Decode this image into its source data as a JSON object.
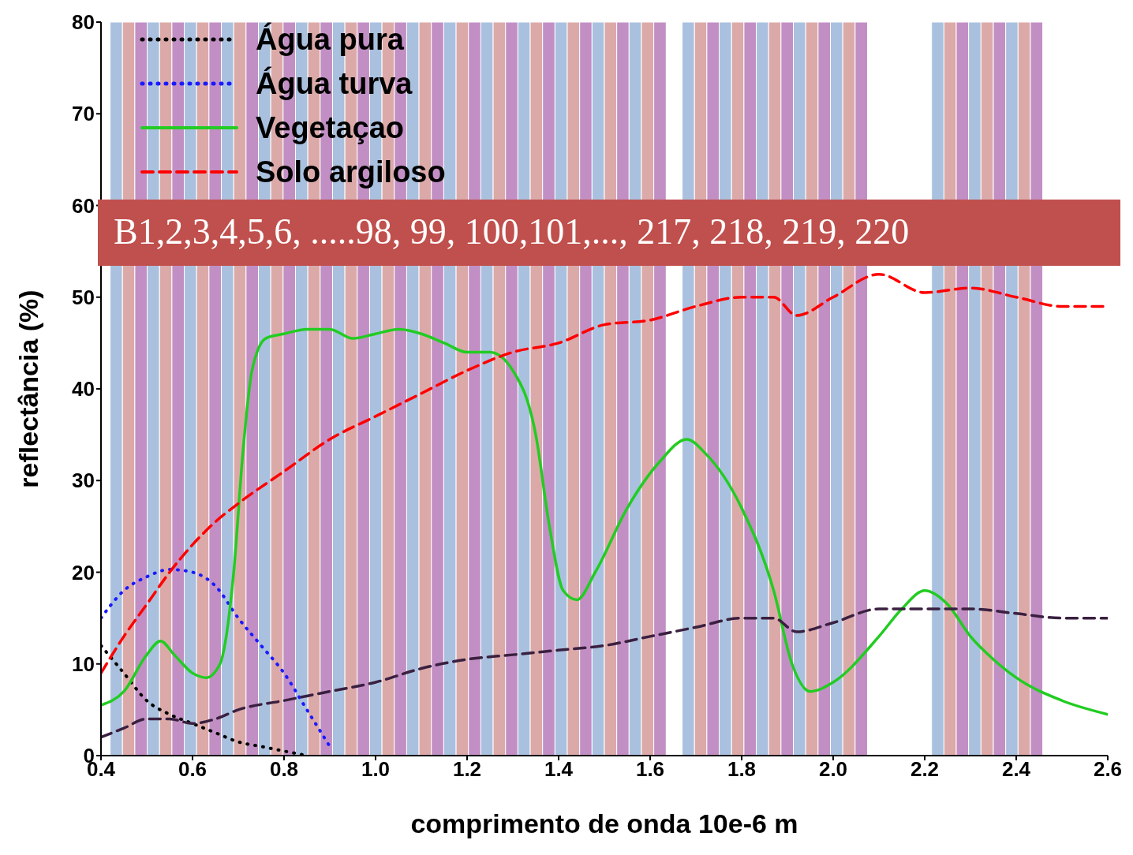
{
  "chart_data": {
    "type": "line",
    "xlabel": "comprimento de onda 10e-6 m",
    "ylabel": "reflectância (%)",
    "annotations": [
      "B1,2,3,4,5,6, .....98, 99, 100,101,..., 217, 218, 219, 220"
    ],
    "xlim": [
      0.4,
      2.6
    ],
    "xticks": [
      0.4,
      0.6,
      0.8,
      {
        "value": 1,
        "label": "1.0"
      },
      1.2,
      1.4,
      1.6,
      1.8,
      {
        "value": 2,
        "label": "2.0"
      },
      2.2,
      2.4,
      2.6
    ],
    "ylim": [
      0,
      80
    ],
    "yticks": [
      0,
      10,
      20,
      30,
      40,
      50,
      60,
      70,
      80
    ],
    "grid": false,
    "legend": "top left",
    "marker": "none",
    "series": [
      {
        "name": "Água pura",
        "color": "#000000",
        "line_style": "dotted",
        "x": [
          0.4,
          0.45,
          0.5,
          0.55,
          0.6,
          0.65,
          0.7,
          0.75,
          0.8,
          0.85
        ],
        "values": [
          12,
          9,
          6,
          4.5,
          3.5,
          2.5,
          1.5,
          1,
          0.5,
          0
        ]
      },
      {
        "name": "Água turva",
        "color": "#1a1aff",
        "line_style": "dotted",
        "x": [
          0.4,
          0.45,
          0.5,
          0.55,
          0.6,
          0.65,
          0.7,
          0.75,
          0.8,
          0.85,
          0.9
        ],
        "values": [
          15,
          18,
          19.5,
          20.3,
          20,
          18.5,
          15,
          12,
          9,
          5,
          1
        ]
      },
      {
        "name": "Vegetaçao",
        "color": "#22cc22",
        "line_style": "solid",
        "x": [
          0.4,
          0.45,
          0.5,
          0.53,
          0.56,
          0.6,
          0.63,
          0.66,
          0.69,
          0.71,
          0.73,
          0.76,
          0.8,
          0.85,
          0.9,
          0.95,
          1.0,
          1.05,
          1.1,
          1.15,
          1.2,
          1.25,
          1.3,
          1.35,
          1.38,
          1.41,
          1.44,
          1.48,
          1.55,
          1.62,
          1.68,
          1.72,
          1.8,
          1.87,
          1.91,
          1.95,
          2.0,
          2.1,
          2.15,
          2.2,
          2.25,
          2.3,
          2.35,
          2.4,
          2.5,
          2.6
        ],
        "values": [
          5.5,
          7,
          11,
          12.5,
          11,
          9,
          8.5,
          10,
          20,
          33,
          42,
          45.5,
          46,
          46.5,
          46.5,
          45.5,
          46,
          46.5,
          46,
          45,
          44,
          44,
          42,
          35,
          25,
          18,
          17,
          20,
          27,
          32,
          34.5,
          33,
          27,
          18,
          10,
          7,
          8,
          13,
          16,
          18,
          16.5,
          13,
          10.5,
          8.5,
          6,
          4.5
        ]
      },
      {
        "name": "Solo argiloso",
        "color": "#ff0000",
        "line_style": "dashed",
        "x": [
          0.4,
          0.45,
          0.5,
          0.55,
          0.6,
          0.65,
          0.7,
          0.8,
          0.9,
          1.0,
          1.1,
          1.2,
          1.3,
          1.4,
          1.5,
          1.6,
          1.7,
          1.8,
          1.87,
          1.92,
          2.0,
          2.1,
          2.2,
          2.3,
          2.4,
          2.5,
          2.6
        ],
        "values": [
          9,
          13,
          16.5,
          20,
          23,
          25.5,
          27.5,
          31,
          34.5,
          37,
          39.5,
          42,
          44,
          45,
          47,
          47.5,
          49,
          50,
          50,
          48,
          50,
          52.5,
          50.5,
          51,
          50,
          49,
          49
        ]
      },
      {
        "color": "#3a2040",
        "line_style": "dashed",
        "x": [
          0.4,
          0.45,
          0.5,
          0.55,
          0.6,
          0.65,
          0.7,
          0.8,
          0.9,
          1.0,
          1.1,
          1.2,
          1.3,
          1.4,
          1.5,
          1.6,
          1.7,
          1.8,
          1.87,
          1.92,
          2.0,
          2.1,
          2.2,
          2.3,
          2.4,
          2.5,
          2.6
        ],
        "values": [
          2,
          3,
          4,
          4,
          3.5,
          4,
          5,
          6,
          7,
          8,
          9.5,
          10.5,
          11,
          11.5,
          12,
          13,
          14,
          15,
          15,
          13.5,
          14.5,
          16,
          16,
          16,
          15.5,
          15,
          15
        ]
      }
    ],
    "bands": [
      {
        "axis": "x",
        "from": 0.42,
        "to": 0.447,
        "color": "#a9c1de"
      },
      {
        "axis": "x",
        "from": 0.447,
        "to": 0.474,
        "color": "#dca9a9"
      },
      {
        "axis": "x",
        "from": 0.474,
        "to": 0.501,
        "color": "#c28fc4"
      },
      {
        "axis": "x",
        "from": 0.501,
        "to": 0.528,
        "color": "#a9c1de"
      },
      {
        "axis": "x",
        "from": 0.528,
        "to": 0.555,
        "color": "#dca9a9"
      },
      {
        "axis": "x",
        "from": 0.555,
        "to": 0.582,
        "color": "#c28fc4"
      },
      {
        "axis": "x",
        "from": 0.582,
        "to": 0.609,
        "color": "#a9c1de"
      },
      {
        "axis": "x",
        "from": 0.609,
        "to": 0.636,
        "color": "#dca9a9"
      },
      {
        "axis": "x",
        "from": 0.636,
        "to": 0.663,
        "color": "#c28fc4"
      },
      {
        "axis": "x",
        "from": 0.663,
        "to": 0.69,
        "color": "#a9c1de"
      },
      {
        "axis": "x",
        "from": 0.69,
        "to": 0.717,
        "color": "#dca9a9"
      },
      {
        "axis": "x",
        "from": 0.717,
        "to": 0.744,
        "color": "#c28fc4"
      },
      {
        "axis": "x",
        "from": 0.744,
        "to": 0.771,
        "color": "#a9c1de"
      },
      {
        "axis": "x",
        "from": 0.771,
        "to": 0.798,
        "color": "#dca9a9"
      },
      {
        "axis": "x",
        "from": 0.798,
        "to": 0.825,
        "color": "#c28fc4"
      },
      {
        "axis": "x",
        "from": 0.825,
        "to": 0.852,
        "color": "#a9c1de"
      },
      {
        "axis": "x",
        "from": 0.852,
        "to": 0.879,
        "color": "#dca9a9"
      },
      {
        "axis": "x",
        "from": 0.879,
        "to": 0.906,
        "color": "#c28fc4"
      },
      {
        "axis": "x",
        "from": 0.906,
        "to": 0.933,
        "color": "#a9c1de"
      },
      {
        "axis": "x",
        "from": 0.933,
        "to": 0.96,
        "color": "#dca9a9"
      },
      {
        "axis": "x",
        "from": 0.96,
        "to": 0.987,
        "color": "#c28fc4"
      },
      {
        "axis": "x",
        "from": 0.987,
        "to": 1.014,
        "color": "#a9c1de"
      },
      {
        "axis": "x",
        "from": 1.014,
        "to": 1.041,
        "color": "#dca9a9"
      },
      {
        "axis": "x",
        "from": 1.041,
        "to": 1.068,
        "color": "#c28fc4"
      },
      {
        "axis": "x",
        "from": 1.068,
        "to": 1.095,
        "color": "#a9c1de"
      },
      {
        "axis": "x",
        "from": 1.095,
        "to": 1.122,
        "color": "#dca9a9"
      },
      {
        "axis": "x",
        "from": 1.122,
        "to": 1.149,
        "color": "#c28fc4"
      },
      {
        "axis": "x",
        "from": 1.149,
        "to": 1.176,
        "color": "#a9c1de"
      },
      {
        "axis": "x",
        "from": 1.176,
        "to": 1.203,
        "color": "#dca9a9"
      },
      {
        "axis": "x",
        "from": 1.203,
        "to": 1.23,
        "color": "#c28fc4"
      },
      {
        "axis": "x",
        "from": 1.23,
        "to": 1.257,
        "color": "#a9c1de"
      },
      {
        "axis": "x",
        "from": 1.257,
        "to": 1.284,
        "color": "#dca9a9"
      },
      {
        "axis": "x",
        "from": 1.284,
        "to": 1.311,
        "color": "#c28fc4"
      },
      {
        "axis": "x",
        "from": 1.311,
        "to": 1.338,
        "color": "#a9c1de"
      },
      {
        "axis": "x",
        "from": 1.338,
        "to": 1.365,
        "color": "#dca9a9"
      },
      {
        "axis": "x",
        "from": 1.365,
        "to": 1.392,
        "color": "#c28fc4"
      },
      {
        "axis": "x",
        "from": 1.392,
        "to": 1.419,
        "color": "#a9c1de"
      },
      {
        "axis": "x",
        "from": 1.419,
        "to": 1.446,
        "color": "#dca9a9"
      },
      {
        "axis": "x",
        "from": 1.446,
        "to": 1.473,
        "color": "#c28fc4"
      },
      {
        "axis": "x",
        "from": 1.473,
        "to": 1.5,
        "color": "#a9c1de"
      },
      {
        "axis": "x",
        "from": 1.5,
        "to": 1.527,
        "color": "#dca9a9"
      },
      {
        "axis": "x",
        "from": 1.527,
        "to": 1.554,
        "color": "#c28fc4"
      },
      {
        "axis": "x",
        "from": 1.554,
        "to": 1.581,
        "color": "#a9c1de"
      },
      {
        "axis": "x",
        "from": 1.581,
        "to": 1.608,
        "color": "#dca9a9"
      },
      {
        "axis": "x",
        "from": 1.608,
        "to": 1.635,
        "color": "#c28fc4"
      },
      {
        "axis": "x",
        "from": 1.67,
        "to": 1.697,
        "color": "#a9c1de"
      },
      {
        "axis": "x",
        "from": 1.697,
        "to": 1.724,
        "color": "#dca9a9"
      },
      {
        "axis": "x",
        "from": 1.724,
        "to": 1.751,
        "color": "#c28fc4"
      },
      {
        "axis": "x",
        "from": 1.751,
        "to": 1.778,
        "color": "#a9c1de"
      },
      {
        "axis": "x",
        "from": 1.778,
        "to": 1.805,
        "color": "#dca9a9"
      },
      {
        "axis": "x",
        "from": 1.805,
        "to": 1.832,
        "color": "#c28fc4"
      },
      {
        "axis": "x",
        "from": 1.832,
        "to": 1.859,
        "color": "#a9c1de"
      },
      {
        "axis": "x",
        "from": 1.859,
        "to": 1.886,
        "color": "#dca9a9"
      },
      {
        "axis": "x",
        "from": 1.886,
        "to": 1.913,
        "color": "#c28fc4"
      },
      {
        "axis": "x",
        "from": 1.913,
        "to": 1.94,
        "color": "#a9c1de"
      },
      {
        "axis": "x",
        "from": 1.94,
        "to": 1.967,
        "color": "#dca9a9"
      },
      {
        "axis": "x",
        "from": 1.967,
        "to": 1.994,
        "color": "#c28fc4"
      },
      {
        "axis": "x",
        "from": 1.994,
        "to": 2.021,
        "color": "#a9c1de"
      },
      {
        "axis": "x",
        "from": 2.021,
        "to": 2.048,
        "color": "#dca9a9"
      },
      {
        "axis": "x",
        "from": 2.048,
        "to": 2.075,
        "color": "#c28fc4"
      },
      {
        "axis": "x",
        "from": 2.215,
        "to": 2.242,
        "color": "#a9c1de"
      },
      {
        "axis": "x",
        "from": 2.242,
        "to": 2.269,
        "color": "#dca9a9"
      },
      {
        "axis": "x",
        "from": 2.269,
        "to": 2.296,
        "color": "#c28fc4"
      },
      {
        "axis": "x",
        "from": 2.296,
        "to": 2.323,
        "color": "#a9c1de"
      },
      {
        "axis": "x",
        "from": 2.323,
        "to": 2.35,
        "color": "#dca9a9"
      },
      {
        "axis": "x",
        "from": 2.35,
        "to": 2.377,
        "color": "#c28fc4"
      },
      {
        "axis": "x",
        "from": 2.377,
        "to": 2.404,
        "color": "#a9c1de"
      },
      {
        "axis": "x",
        "from": 2.404,
        "to": 2.431,
        "color": "#dca9a9"
      },
      {
        "axis": "x",
        "from": 2.431,
        "to": 2.458,
        "color": "#c28fc4"
      }
    ]
  }
}
